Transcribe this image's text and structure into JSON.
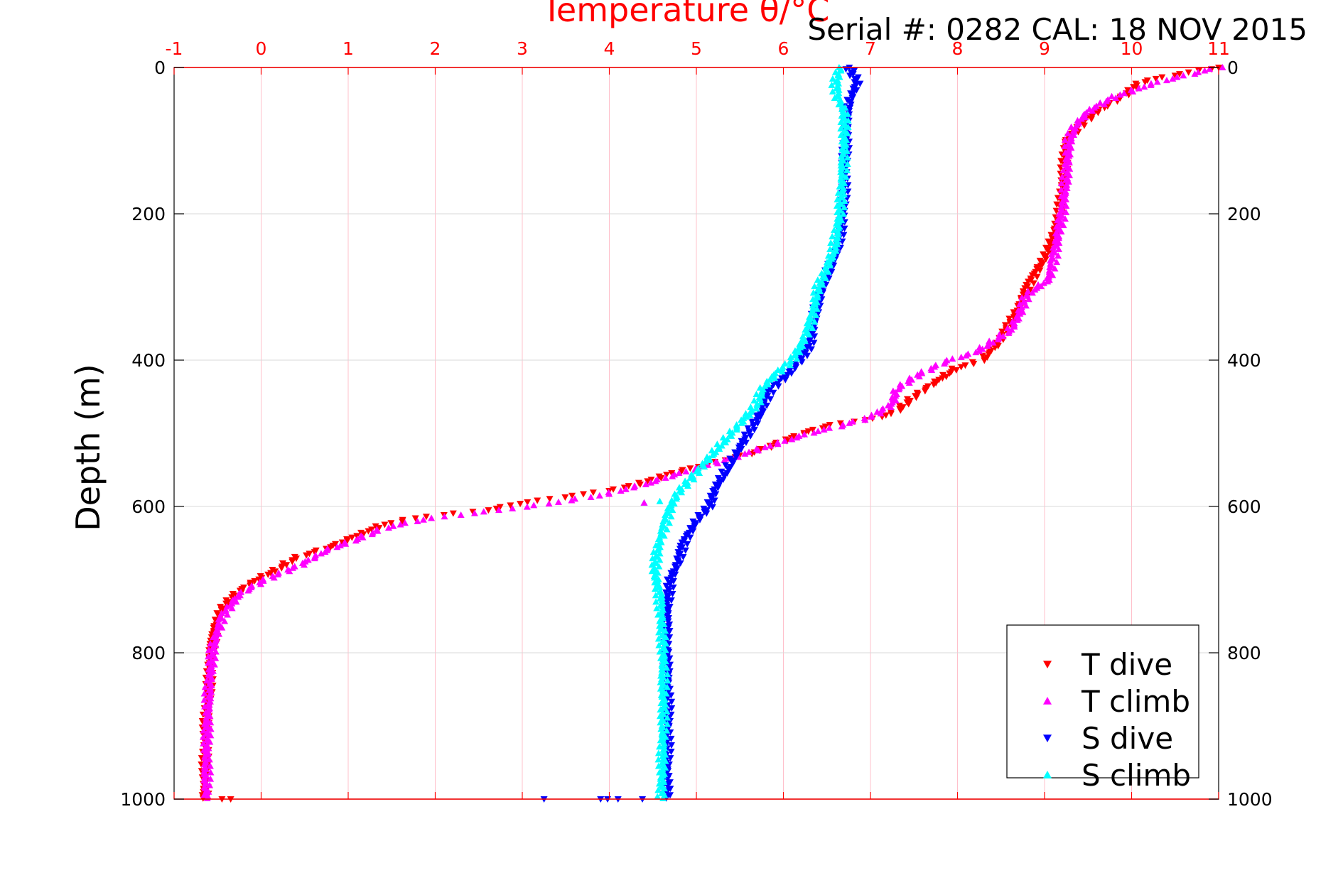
{
  "chart_data": {
    "type": "scatter",
    "title": "Temperature θ/°C",
    "subtitle": "Serial #: 0282  CAL: 18 NOV 2015",
    "xlabel": "Temperature θ/°C",
    "ylabel": "Depth (m)",
    "xlim": [
      -1,
      11
    ],
    "ylim": [
      0,
      1000
    ],
    "y_inverted": true,
    "x_ticks": [
      "-1",
      "0",
      "1",
      "2",
      "3",
      "4",
      "5",
      "6",
      "7",
      "8",
      "9",
      "10",
      "11"
    ],
    "y_ticks": [
      "0",
      "200",
      "400",
      "600",
      "800",
      "1000"
    ],
    "grid": true,
    "legend_position": "bottom-right",
    "colors": {
      "axis_top": "#ff0000",
      "grid": "#ffc0cb",
      "hgrid": "#d9d9d9",
      "title": "#ff0000"
    },
    "series": [
      {
        "name": "T dive",
        "marker": "triangle-down",
        "color": "#ff0000",
        "profile": [
          [
            0,
            11.0
          ],
          [
            10,
            10.5
          ],
          [
            20,
            10.1
          ],
          [
            40,
            9.9
          ],
          [
            60,
            9.6
          ],
          [
            80,
            9.4
          ],
          [
            100,
            9.25
          ],
          [
            150,
            9.22
          ],
          [
            200,
            9.18
          ],
          [
            250,
            9.05
          ],
          [
            270,
            8.95
          ],
          [
            300,
            8.8
          ],
          [
            330,
            8.7
          ],
          [
            360,
            8.55
          ],
          [
            380,
            8.45
          ],
          [
            390,
            8.35
          ],
          [
            400,
            8.3
          ],
          [
            410,
            8.0
          ],
          [
            430,
            7.75
          ],
          [
            450,
            7.5
          ],
          [
            470,
            7.3
          ],
          [
            480,
            7.05
          ],
          [
            487,
            6.6
          ],
          [
            495,
            6.35
          ],
          [
            510,
            6.0
          ],
          [
            525,
            5.7
          ],
          [
            540,
            5.2
          ],
          [
            555,
            4.7
          ],
          [
            565,
            4.45
          ],
          [
            575,
            4.15
          ],
          [
            585,
            3.6
          ],
          [
            595,
            3.0
          ],
          [
            605,
            2.6
          ],
          [
            615,
            1.8
          ],
          [
            625,
            1.4
          ],
          [
            640,
            1.1
          ],
          [
            655,
            0.8
          ],
          [
            670,
            0.4
          ],
          [
            685,
            0.2
          ],
          [
            700,
            -0.05
          ],
          [
            720,
            -0.3
          ],
          [
            740,
            -0.45
          ],
          [
            760,
            -0.52
          ],
          [
            800,
            -0.58
          ],
          [
            850,
            -0.6
          ],
          [
            900,
            -0.63
          ],
          [
            950,
            -0.64
          ],
          [
            1000,
            -0.65
          ]
        ]
      },
      {
        "name": "T climb",
        "marker": "triangle-up",
        "color": "#ff00ff",
        "profile": [
          [
            0,
            11.0
          ],
          [
            20,
            10.3
          ],
          [
            40,
            9.8
          ],
          [
            60,
            9.5
          ],
          [
            80,
            9.35
          ],
          [
            100,
            9.28
          ],
          [
            150,
            9.25
          ],
          [
            200,
            9.2
          ],
          [
            250,
            9.12
          ],
          [
            290,
            9.05
          ],
          [
            310,
            8.8
          ],
          [
            340,
            8.7
          ],
          [
            360,
            8.6
          ],
          [
            390,
            8.2
          ],
          [
            400,
            7.9
          ],
          [
            420,
            7.55
          ],
          [
            440,
            7.3
          ],
          [
            460,
            7.25
          ],
          [
            478,
            7.0
          ],
          [
            490,
            6.65
          ],
          [
            500,
            6.3
          ],
          [
            515,
            5.9
          ],
          [
            530,
            5.5
          ],
          [
            545,
            5.1
          ],
          [
            555,
            4.8
          ],
          [
            570,
            4.4
          ],
          [
            585,
            3.9
          ],
          [
            598,
            3.2
          ],
          [
            607,
            2.6
          ],
          [
            617,
            1.9
          ],
          [
            630,
            1.4
          ],
          [
            645,
            1.1
          ],
          [
            660,
            0.75
          ],
          [
            680,
            0.45
          ],
          [
            700,
            0.05
          ],
          [
            720,
            -0.25
          ],
          [
            750,
            -0.45
          ],
          [
            790,
            -0.55
          ],
          [
            850,
            -0.6
          ],
          [
            900,
            -0.62
          ],
          [
            950,
            -0.63
          ],
          [
            1000,
            -0.63
          ]
        ]
      },
      {
        "name": "S dive",
        "marker": "triangle-down",
        "color": "#0000ff",
        "profile": [
          [
            0,
            6.75
          ],
          [
            20,
            6.85
          ],
          [
            40,
            6.78
          ],
          [
            60,
            6.73
          ],
          [
            100,
            6.72
          ],
          [
            150,
            6.7
          ],
          [
            200,
            6.68
          ],
          [
            250,
            6.62
          ],
          [
            270,
            6.55
          ],
          [
            300,
            6.45
          ],
          [
            330,
            6.38
          ],
          [
            350,
            6.35
          ],
          [
            380,
            6.3
          ],
          [
            400,
            6.2
          ],
          [
            420,
            6.05
          ],
          [
            440,
            5.85
          ],
          [
            470,
            5.75
          ],
          [
            500,
            5.6
          ],
          [
            530,
            5.45
          ],
          [
            550,
            5.35
          ],
          [
            580,
            5.2
          ],
          [
            600,
            5.15
          ],
          [
            620,
            5.0
          ],
          [
            650,
            4.85
          ],
          [
            680,
            4.78
          ],
          [
            700,
            4.7
          ],
          [
            720,
            4.68
          ],
          [
            750,
            4.66
          ],
          [
            800,
            4.66
          ],
          [
            850,
            4.67
          ],
          [
            900,
            4.67
          ],
          [
            950,
            4.66
          ],
          [
            1000,
            4.66
          ]
        ]
      },
      {
        "name": "S climb",
        "marker": "triangle-up",
        "color": "#00ffff",
        "profile": [
          [
            0,
            6.65
          ],
          [
            20,
            6.6
          ],
          [
            40,
            6.62
          ],
          [
            60,
            6.7
          ],
          [
            100,
            6.7
          ],
          [
            150,
            6.68
          ],
          [
            200,
            6.65
          ],
          [
            250,
            6.58
          ],
          [
            280,
            6.48
          ],
          [
            300,
            6.4
          ],
          [
            330,
            6.35
          ],
          [
            360,
            6.28
          ],
          [
            380,
            6.2
          ],
          [
            400,
            6.1
          ],
          [
            420,
            5.9
          ],
          [
            440,
            5.75
          ],
          [
            460,
            5.7
          ],
          [
            480,
            5.55
          ],
          [
            500,
            5.4
          ],
          [
            520,
            5.25
          ],
          [
            540,
            5.1
          ],
          [
            560,
            4.95
          ],
          [
            580,
            4.8
          ],
          [
            600,
            4.7
          ],
          [
            630,
            4.62
          ],
          [
            660,
            4.55
          ],
          [
            690,
            4.52
          ],
          [
            720,
            4.58
          ],
          [
            760,
            4.6
          ],
          [
            800,
            4.62
          ],
          [
            850,
            4.62
          ],
          [
            900,
            4.62
          ],
          [
            950,
            4.61
          ],
          [
            1000,
            4.6
          ]
        ]
      }
    ],
    "outliers": [
      {
        "series": "T dive",
        "points": [
          [
            1000,
            -0.45
          ],
          [
            1000,
            -0.35
          ]
        ]
      },
      {
        "series": "S dive",
        "points": [
          [
            1000,
            3.25
          ],
          [
            1000,
            3.9
          ],
          [
            1000,
            3.98
          ],
          [
            1000,
            4.1
          ],
          [
            1000,
            4.38
          ]
        ]
      },
      {
        "series": "S climb",
        "points": [
          [
            595,
            4.4
          ],
          [
            593,
            4.58
          ]
        ]
      },
      {
        "series": "T climb",
        "points": [
          [
            595,
            4.4
          ]
        ]
      }
    ]
  }
}
